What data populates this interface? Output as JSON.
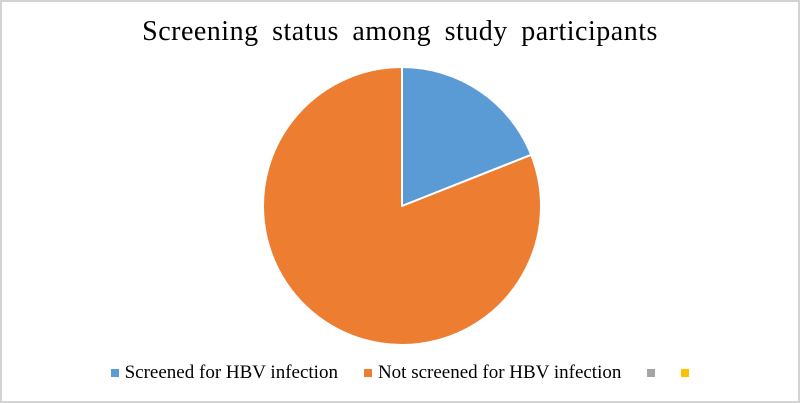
{
  "title": "Screening status among study participants",
  "chart_data": {
    "type": "pie",
    "title": "Screening status among study participants",
    "categories": [
      "Screened for HBV infection",
      "Not screened for HBV infection",
      "",
      ""
    ],
    "values": [
      19,
      81,
      0,
      0
    ],
    "unit": "percent (estimated from slice angles)",
    "colors": [
      "#5B9BD5",
      "#ED7D31",
      "#A5A5A5",
      "#FFC000"
    ],
    "start_angle_deg": 0,
    "direction": "clockwise",
    "slice_border_color": "#FFFFFF",
    "slice_border_width": 2,
    "legend_position": "bottom",
    "data_labels": false
  },
  "legend": {
    "items": [
      {
        "label": "Screened for HBV infection",
        "color": "#5B9BD5"
      },
      {
        "label": "Not screened for HBV infection",
        "color": "#ED7D31"
      },
      {
        "label": "",
        "color": "#A5A5A5"
      },
      {
        "label": "",
        "color": "#FFC000"
      }
    ]
  },
  "frame": {
    "background": "#FFFFFF",
    "border_color": "#D3D3D3"
  }
}
